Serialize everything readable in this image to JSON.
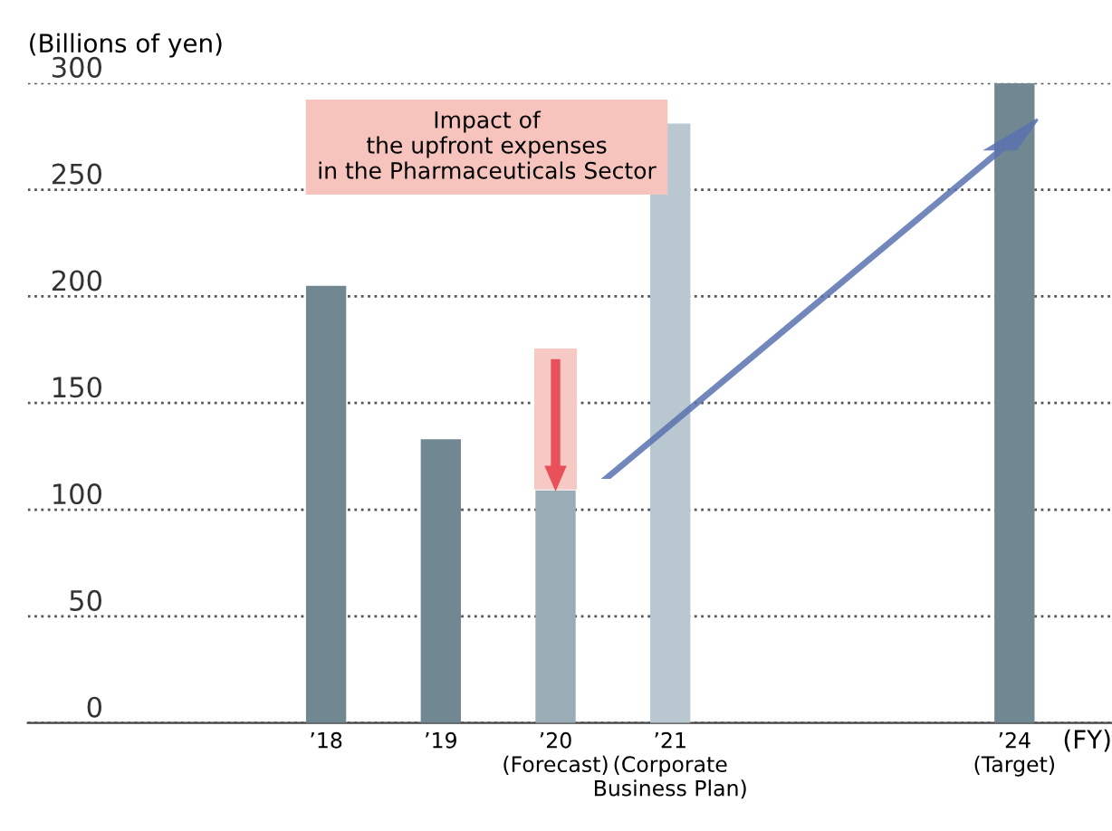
{
  "chart_data": {
    "type": "bar",
    "ylabel": "(Billions of yen)",
    "xlabel": "(FY)",
    "categories": [
      "’18",
      "’19",
      "’20\n(Forecast)",
      "’21\n(Corporate\nBusiness Plan)",
      null,
      null,
      "’24\n(Target)"
    ],
    "values": [
      205,
      133,
      109,
      281,
      null,
      null,
      300
    ],
    "colors": [
      "#718892",
      "#718892",
      "#9aacb5",
      "#b9c8d0",
      null,
      null,
      "#718892"
    ],
    "ylim": [
      0,
      300
    ],
    "yticks": [
      0,
      50,
      100,
      150,
      200,
      250,
      300
    ],
    "grid": "y",
    "annotations": [
      "Impact of\nthe upfront expenses\nin the Pharmaceuticals Sector"
    ]
  }
}
